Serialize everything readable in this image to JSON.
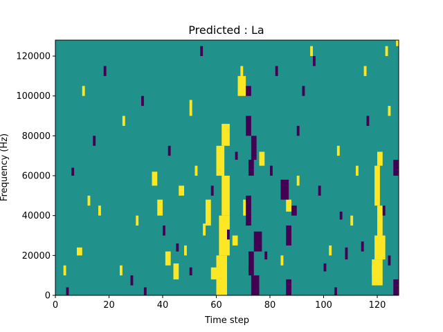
{
  "chart_data": {
    "type": "heatmap",
    "title": "Predicted : La",
    "xlabel": "Time step",
    "ylabel": "Frequency (Hz)",
    "xlim": [
      0,
      128
    ],
    "ylim": [
      0,
      128000
    ],
    "x_ticks": [
      0,
      20,
      40,
      60,
      80,
      100,
      120
    ],
    "x_tick_labels": [
      "0",
      "20",
      "40",
      "60",
      "80",
      "100",
      "120"
    ],
    "y_ticks": [
      0,
      20000,
      40000,
      60000,
      80000,
      100000,
      120000
    ],
    "y_tick_labels": [
      "0",
      "20000",
      "40000",
      "60000",
      "80000",
      "100000",
      "120000"
    ],
    "grid": false,
    "colors": {
      "background": "#21918c",
      "high": "#fde725",
      "low": "#440154"
    },
    "value_levels": {
      "low": -1,
      "mid": 0,
      "high": 1
    },
    "cells_high": [
      [
        60,
        0,
        64,
        20000
      ],
      [
        61,
        20000,
        65,
        40000
      ],
      [
        62,
        40000,
        65,
        60000
      ],
      [
        60,
        60000,
        63,
        75000
      ],
      [
        62,
        75000,
        65,
        86000
      ],
      [
        56,
        35000,
        58,
        48000
      ],
      [
        41,
        15000,
        43,
        22000
      ],
      [
        44,
        8000,
        46,
        16000
      ],
      [
        58,
        8000,
        60,
        14000
      ],
      [
        118,
        5000,
        122,
        18000
      ],
      [
        119,
        18000,
        123,
        30000
      ],
      [
        120,
        30000,
        122,
        45000
      ],
      [
        119,
        45000,
        121,
        65000
      ],
      [
        120,
        65000,
        122,
        72000
      ],
      [
        68,
        100000,
        71,
        110000
      ],
      [
        69,
        110000,
        70,
        115000
      ],
      [
        95,
        120000,
        96,
        125000
      ],
      [
        123,
        120000,
        124,
        125000
      ],
      [
        127,
        125000,
        128,
        128000
      ],
      [
        10,
        100000,
        11,
        105000
      ],
      [
        25,
        85000,
        26,
        90000
      ],
      [
        12,
        45000,
        13,
        50000
      ],
      [
        16,
        40000,
        17,
        45000
      ],
      [
        30,
        35000,
        31,
        40000
      ],
      [
        8,
        20000,
        10,
        24000
      ],
      [
        3,
        10000,
        4,
        15000
      ],
      [
        24,
        10000,
        25,
        15000
      ],
      [
        36,
        55000,
        38,
        62000
      ],
      [
        38,
        40000,
        40,
        48000
      ],
      [
        46,
        50000,
        48,
        55000
      ],
      [
        52,
        60000,
        53,
        65000
      ],
      [
        55,
        30000,
        56,
        36000
      ],
      [
        76,
        65000,
        78,
        72000
      ],
      [
        84,
        15000,
        85,
        20000
      ],
      [
        86,
        42000,
        88,
        48000
      ],
      [
        90,
        55000,
        91,
        60000
      ],
      [
        102,
        20000,
        103,
        25000
      ],
      [
        110,
        35000,
        111,
        40000
      ],
      [
        112,
        60000,
        113,
        65000
      ],
      [
        115,
        110000,
        116,
        115000
      ],
      [
        118,
        10000,
        120,
        15000
      ],
      [
        124,
        90000,
        125,
        95000
      ],
      [
        66,
        25000,
        68,
        30000
      ],
      [
        70,
        40000,
        71,
        48000
      ],
      [
        72,
        12000,
        73,
        18000
      ],
      [
        50,
        90000,
        51,
        98000
      ],
      [
        48,
        20000,
        49,
        25000
      ],
      [
        105,
        70000,
        106,
        75000
      ]
    ],
    "cells_low": [
      [
        71,
        35000,
        73,
        50000
      ],
      [
        73,
        0,
        76,
        10000
      ],
      [
        72,
        10000,
        74,
        22000
      ],
      [
        74,
        22000,
        77,
        32000
      ],
      [
        72,
        60000,
        74,
        68000
      ],
      [
        73,
        68000,
        75,
        80000
      ],
      [
        71,
        80000,
        73,
        90000
      ],
      [
        86,
        0,
        88,
        8000
      ],
      [
        86,
        25000,
        88,
        35000
      ],
      [
        84,
        48000,
        87,
        58000
      ],
      [
        88,
        40000,
        90,
        45000
      ],
      [
        78,
        18000,
        79,
        22000
      ],
      [
        126,
        0,
        128,
        8000
      ],
      [
        126,
        60000,
        128,
        68000
      ],
      [
        71,
        100000,
        73,
        105000
      ],
      [
        4,
        0,
        5,
        4000
      ],
      [
        28,
        5000,
        29,
        10000
      ],
      [
        33,
        0,
        34,
        4000
      ],
      [
        40,
        30000,
        41,
        35000
      ],
      [
        45,
        22000,
        46,
        26000
      ],
      [
        50,
        10000,
        51,
        14000
      ],
      [
        64,
        28000,
        65,
        33000
      ],
      [
        67,
        68000,
        68,
        72000
      ],
      [
        80,
        60000,
        81,
        65000
      ],
      [
        90,
        80000,
        91,
        85000
      ],
      [
        98,
        50000,
        99,
        55000
      ],
      [
        100,
        12000,
        101,
        16000
      ],
      [
        104,
        0,
        105,
        4000
      ],
      [
        106,
        38000,
        107,
        42000
      ],
      [
        108,
        18000,
        109,
        24000
      ],
      [
        114,
        22000,
        115,
        27000
      ],
      [
        116,
        85000,
        117,
        90000
      ],
      [
        122,
        40000,
        123,
        45000
      ],
      [
        124,
        15000,
        125,
        20000
      ],
      [
        6,
        60000,
        7,
        64000
      ],
      [
        14,
        75000,
        15,
        80000
      ],
      [
        18,
        110000,
        19,
        115000
      ],
      [
        32,
        95000,
        33,
        100000
      ],
      [
        42,
        70000,
        43,
        75000
      ],
      [
        54,
        120000,
        55,
        125000
      ],
      [
        58,
        50000,
        59,
        55000
      ],
      [
        82,
        110000,
        83,
        115000
      ],
      [
        92,
        100000,
        93,
        105000
      ],
      [
        96,
        115000,
        97,
        120000
      ]
    ]
  }
}
